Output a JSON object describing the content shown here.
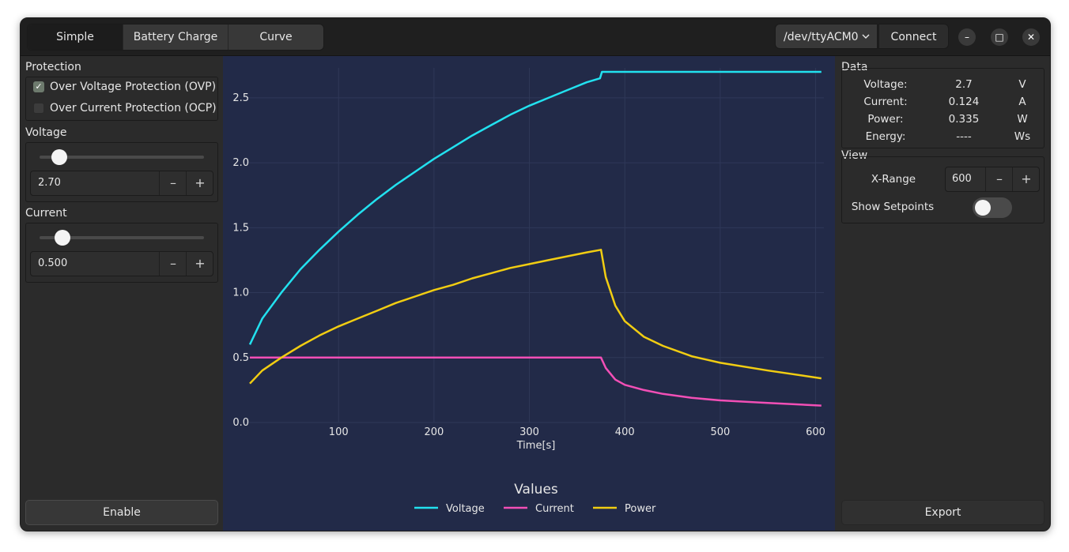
{
  "tabs": [
    {
      "label": "Simple",
      "active": true
    },
    {
      "label": "Battery Charge",
      "active": false
    },
    {
      "label": "Curve",
      "active": false
    }
  ],
  "port": {
    "selected": "/dev/ttyACM0"
  },
  "connect_label": "Connect",
  "window_buttons": {
    "minimize": "–",
    "maximize": "□",
    "close": "✕"
  },
  "protection": {
    "title": "Protection",
    "ovp": {
      "label": "Over Voltage Protection (OVP)",
      "checked": true
    },
    "ocp": {
      "label": "Over Current Protection (OCP)",
      "checked": false
    }
  },
  "voltage": {
    "title": "Voltage",
    "value": "2.70",
    "slider_level": 0.08
  },
  "current": {
    "title": "Current",
    "value": "0.500",
    "slider_level": 0.1
  },
  "spin_buttons": {
    "minus": "–",
    "plus": "+"
  },
  "enable_label": "Enable",
  "data_panel": {
    "title": "Data",
    "rows": [
      {
        "name": "Voltage:",
        "value": "2.7",
        "unit": "V"
      },
      {
        "name": "Current:",
        "value": "0.124",
        "unit": "A"
      },
      {
        "name": "Power:",
        "value": "0.335",
        "unit": "W"
      },
      {
        "name": "Energy:",
        "value": "----",
        "unit": "Ws"
      }
    ]
  },
  "view_panel": {
    "title": "View",
    "xrange_label": "X-Range",
    "xrange_value": "600",
    "show_setpoints_label": "Show Setpoints",
    "show_setpoints_on": false
  },
  "export_label": "Export",
  "colors": {
    "voltage": "#22e1ef",
    "current": "#f24fb6",
    "power": "#f1cd12",
    "plot_bg": "#222a48"
  },
  "chart_data": {
    "type": "line",
    "title": "",
    "xlabel": "Time[s]",
    "ylabel": "",
    "xlim": [
      7,
      607
    ],
    "ylim": [
      0,
      2.7
    ],
    "x_ticks": [
      "100",
      "200",
      "300",
      "400",
      "500",
      "600"
    ],
    "y_ticks": [
      "0.0",
      "0.5",
      "1.0",
      "1.5",
      "2.0",
      "2.5"
    ],
    "legend_title": "Values",
    "legend_position": "bottom",
    "grid": true,
    "series": [
      {
        "name": "Voltage",
        "color": "#22e1ef",
        "x": [
          7,
          20,
          40,
          60,
          80,
          100,
          120,
          140,
          160,
          180,
          200,
          220,
          240,
          260,
          280,
          300,
          320,
          340,
          360,
          374,
          376,
          380,
          420,
          500,
          606
        ],
        "y": [
          0.6,
          0.8,
          1.0,
          1.18,
          1.33,
          1.47,
          1.6,
          1.72,
          1.83,
          1.93,
          2.03,
          2.12,
          2.21,
          2.29,
          2.37,
          2.44,
          2.5,
          2.56,
          2.62,
          2.65,
          2.7,
          2.7,
          2.7,
          2.7,
          2.7
        ]
      },
      {
        "name": "Current",
        "color": "#f24fb6",
        "x": [
          7,
          100,
          200,
          300,
          375,
          380,
          390,
          400,
          420,
          440,
          470,
          500,
          550,
          606
        ],
        "y": [
          0.5,
          0.5,
          0.5,
          0.5,
          0.5,
          0.42,
          0.33,
          0.29,
          0.25,
          0.22,
          0.19,
          0.17,
          0.15,
          0.13
        ]
      },
      {
        "name": "Power",
        "color": "#f1cd12",
        "x": [
          7,
          20,
          40,
          60,
          80,
          100,
          120,
          140,
          160,
          180,
          200,
          220,
          240,
          260,
          280,
          300,
          320,
          340,
          360,
          375,
          380,
          390,
          400,
          420,
          440,
          470,
          500,
          550,
          606
        ],
        "y": [
          0.3,
          0.4,
          0.5,
          0.59,
          0.67,
          0.74,
          0.8,
          0.86,
          0.92,
          0.97,
          1.02,
          1.06,
          1.11,
          1.15,
          1.19,
          1.22,
          1.25,
          1.28,
          1.31,
          1.33,
          1.12,
          0.9,
          0.78,
          0.66,
          0.59,
          0.51,
          0.46,
          0.4,
          0.34
        ]
      }
    ]
  }
}
